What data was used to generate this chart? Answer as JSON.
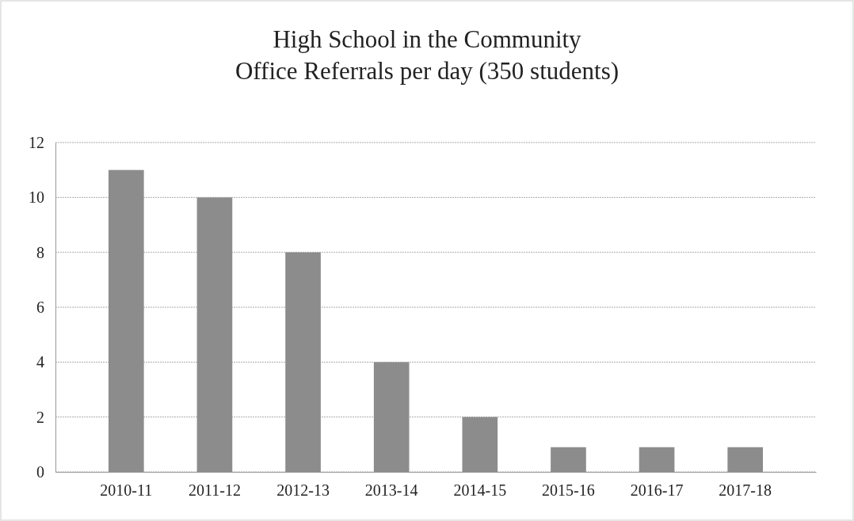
{
  "chart_data": {
    "type": "bar",
    "title": "High School in the Community\nOffice Referrals per day (350 students)",
    "categories": [
      "2010-11",
      "2011-12",
      "2012-13",
      "2013-14",
      "2014-15",
      "2015-16",
      "2016-17",
      "2017-18"
    ],
    "values": [
      11,
      10,
      8,
      4,
      2,
      0.9,
      0.9,
      0.9
    ],
    "color": "#8c8c8c",
    "ylim": [
      0,
      12
    ],
    "yticks": [
      0,
      2,
      4,
      6,
      8,
      10,
      12
    ],
    "grid": "y"
  }
}
